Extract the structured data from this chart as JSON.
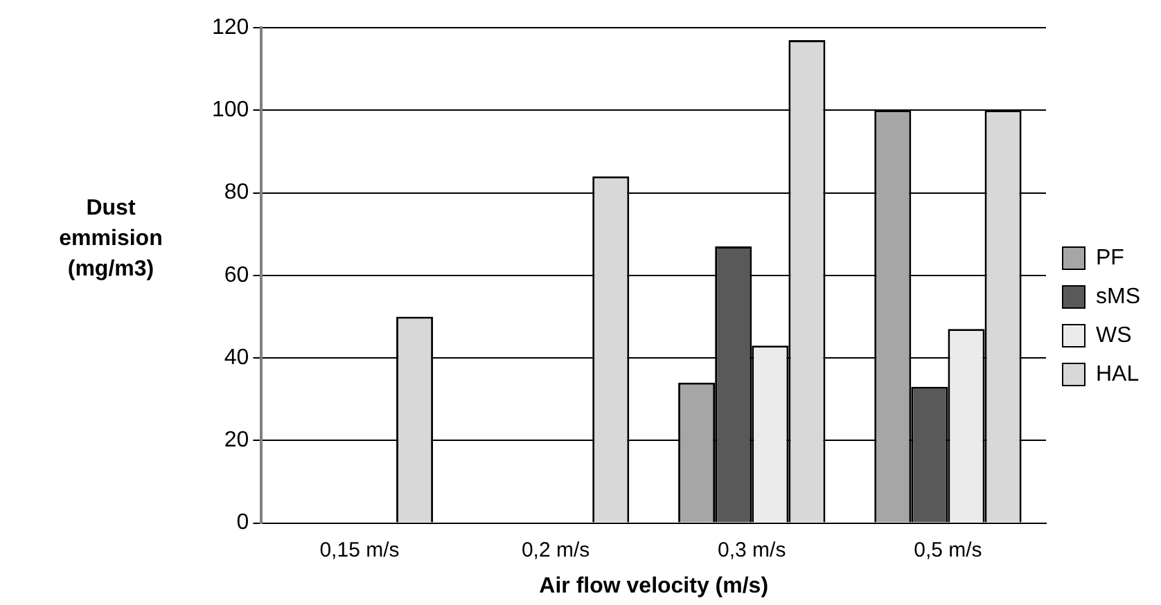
{
  "chart_data": {
    "type": "bar",
    "xlabel": "Air flow velocity (m/s)",
    "ylabel": "Dust emmision (mg/m3)",
    "categories": [
      "0,15 m/s",
      "0,2 m/s",
      "0,3 m/s",
      "0,5 m/s"
    ],
    "series": [
      {
        "name": "PF",
        "color": "#a6a6a6",
        "values": [
          0,
          0,
          34,
          100
        ]
      },
      {
        "name": "sMS",
        "color": "#595959",
        "values": [
          0,
          0,
          67,
          33
        ]
      },
      {
        "name": "WS",
        "color": "#ebebeb",
        "values": [
          0,
          0,
          43,
          47
        ]
      },
      {
        "name": "HAL",
        "color": "#d8d8d8",
        "values": [
          50,
          84,
          117,
          100
        ]
      }
    ],
    "ylim": [
      0,
      120
    ],
    "yticks": [
      0,
      20,
      40,
      60,
      80,
      100,
      120
    ],
    "grid": "y",
    "legend": "right"
  }
}
